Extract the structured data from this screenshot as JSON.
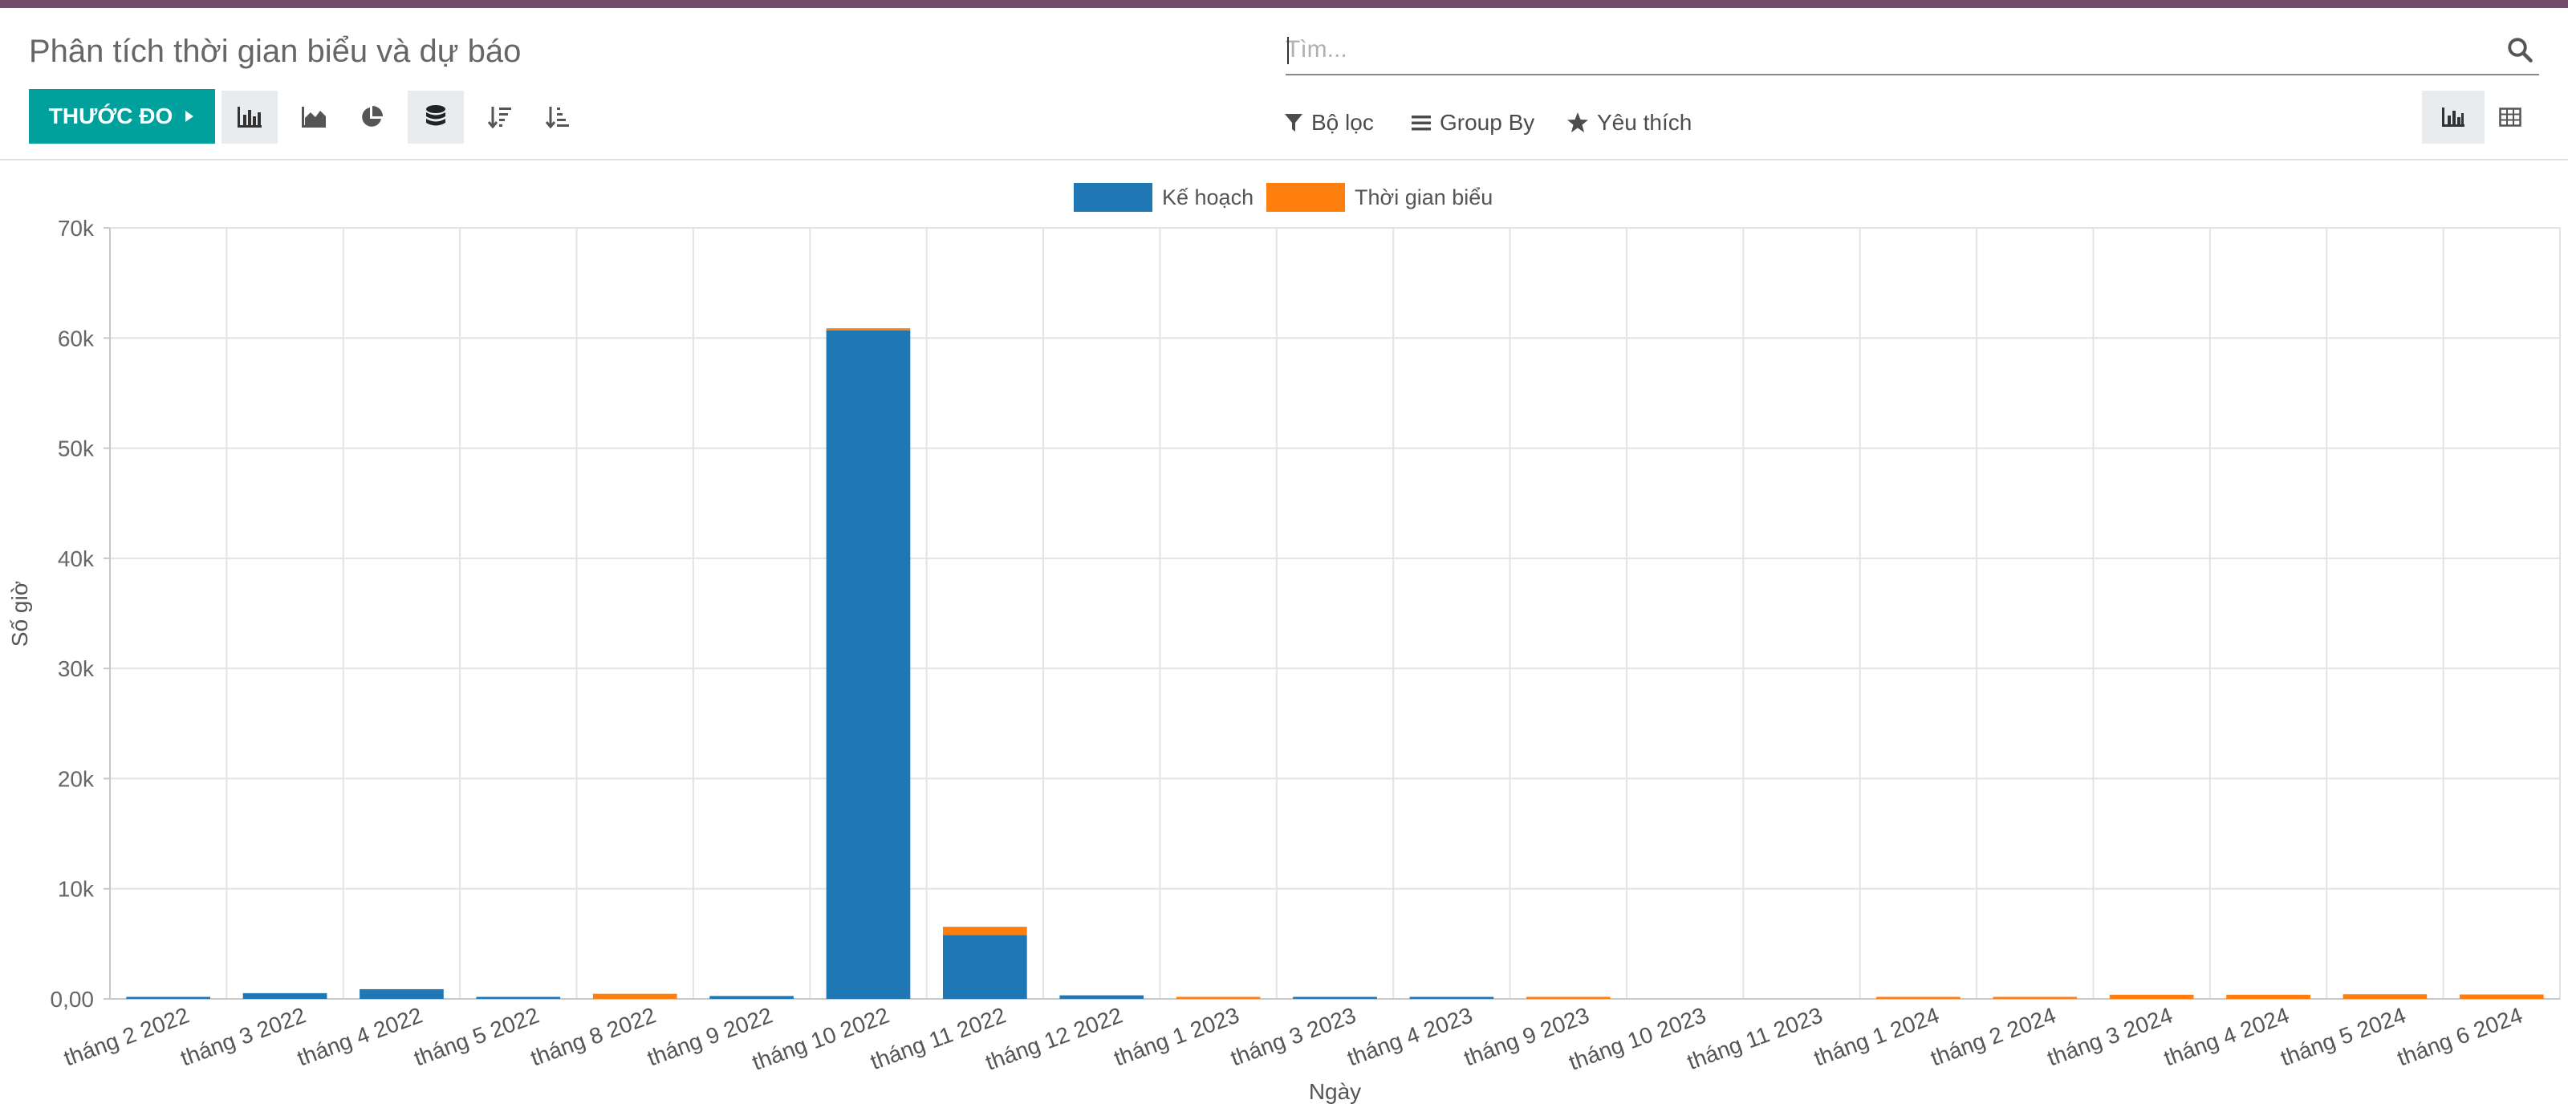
{
  "page": {
    "title": "Phân tích thời gian biểu và dự báo",
    "brand_color": "#714B67",
    "accent_color": "#00A09D"
  },
  "search": {
    "placeholder": "Tìm..."
  },
  "toolbar": {
    "measure_label": "THƯỚC ĐO",
    "buttons": [
      "bar-chart-icon",
      "area-chart-icon",
      "pie-chart-icon",
      "stacked-icon",
      "sort-descending-icon",
      "sort-ascending-icon"
    ],
    "filter_label": "Bộ lọc",
    "groupby_label": "Group By",
    "favorites_label": "Yêu thích",
    "views": [
      "graph-view-icon",
      "pivot-view-icon"
    ]
  },
  "chart_data": {
    "type": "bar",
    "stacked": true,
    "xlabel": "Ngày",
    "ylabel": "Số giờ",
    "ylim": [
      0,
      70000
    ],
    "yticks": [
      0,
      10000,
      20000,
      30000,
      40000,
      50000,
      60000,
      70000
    ],
    "ytick_labels": [
      "0,00",
      "10k",
      "20k",
      "30k",
      "40k",
      "50k",
      "60k",
      "70k"
    ],
    "grid": true,
    "legend_position": "top-center",
    "categories": [
      "tháng 2 2022",
      "tháng 3 2022",
      "tháng 4 2022",
      "tháng 5 2022",
      "tháng 8 2022",
      "tháng 9 2022",
      "tháng 10 2022",
      "tháng 11 2022",
      "tháng 12 2022",
      "tháng 1 2023",
      "tháng 3 2023",
      "tháng 4 2023",
      "tháng 9 2023",
      "tháng 10 2023",
      "tháng 11 2023",
      "tháng 1 2024",
      "tháng 2 2024",
      "tháng 3 2024",
      "tháng 4 2024",
      "tháng 5 2024",
      "tháng 6 2024"
    ],
    "series": [
      {
        "name": "Kế hoạch",
        "color": "#1f77b4",
        "values": [
          50,
          520,
          880,
          80,
          0,
          260,
          60700,
          5800,
          320,
          0,
          60,
          20,
          0,
          0,
          0,
          0,
          0,
          0,
          0,
          0,
          0
        ]
      },
      {
        "name": "Thời gian biểu",
        "color": "#ff7f0e",
        "values": [
          0,
          0,
          0,
          0,
          460,
          0,
          120,
          750,
          0,
          90,
          0,
          0,
          10,
          0,
          0,
          10,
          90,
          380,
          380,
          420,
          400
        ]
      }
    ]
  }
}
